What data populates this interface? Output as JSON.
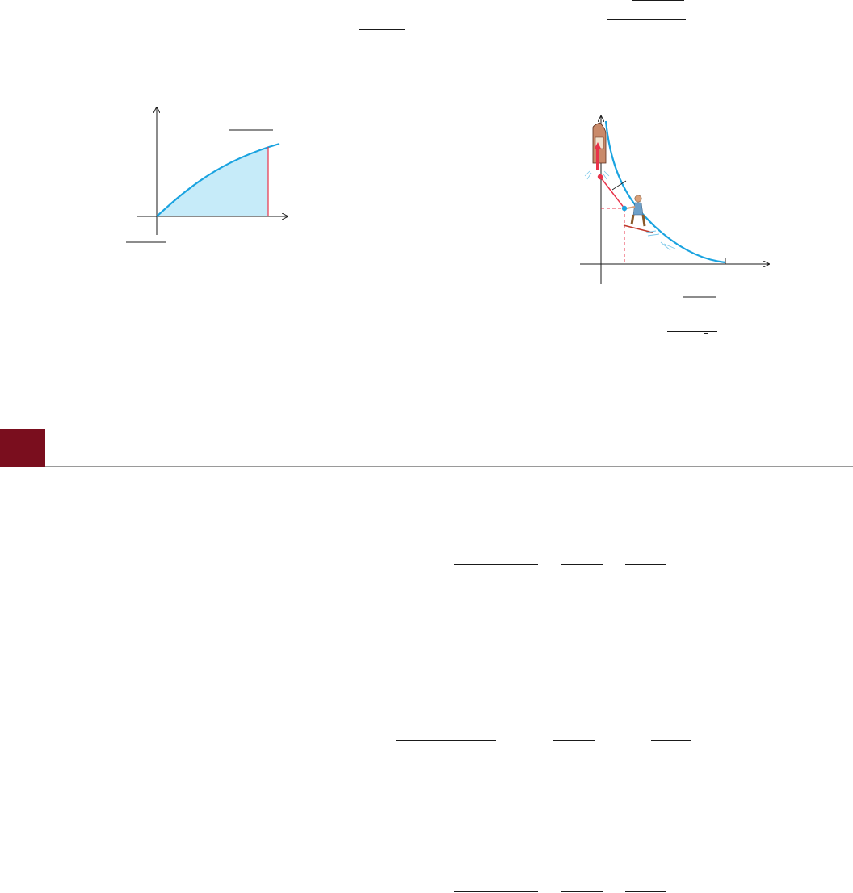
{
  "colors": {
    "curve_blue": "#1aa3e0",
    "fill_blue": "#c6ebf9",
    "marker_red": "#e8334a",
    "section_band": "#7a0e1e",
    "section_rule": "#9a9a9a",
    "axis": "#1a1a1a"
  },
  "icons": {
    "boat": "motorboat-icon",
    "skier": "water-skier-icon",
    "spray": "water-spray-icon"
  }
}
